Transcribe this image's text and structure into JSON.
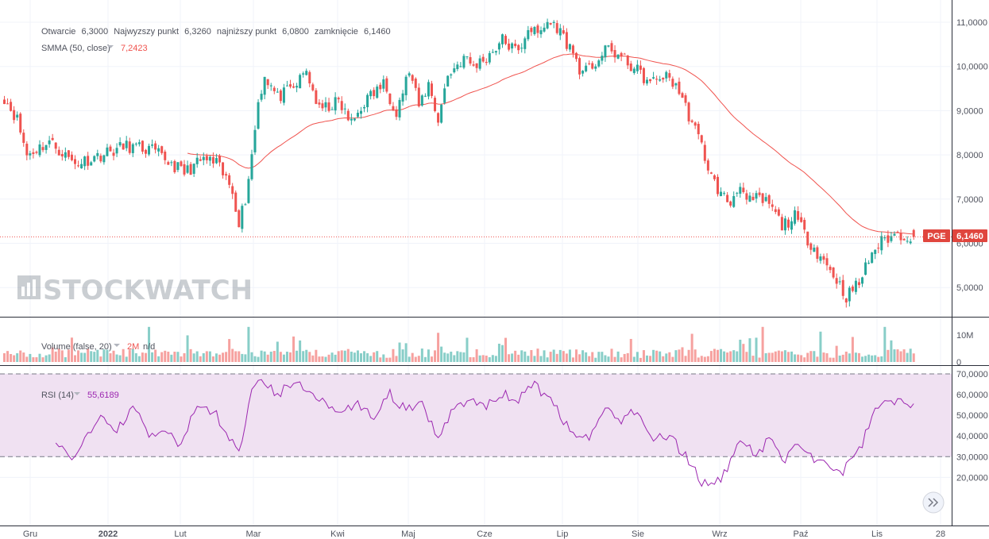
{
  "ticker": "PGE",
  "last_price": "6,1460",
  "ohlc_legend": {
    "open_label": "Otwarcie",
    "open_value": "6,3000",
    "high_label": "Najwyzszy punkt",
    "high_value": "6,3260",
    "low_label": "najniższy punkt",
    "low_value": "6,0800",
    "close_label": "zamknięcie",
    "close_value": "6,1460"
  },
  "smma_legend": {
    "label": "SMMA (50, close)",
    "value": "7,2423"
  },
  "volume_legend": {
    "label": "Volume (false, 20)",
    "value": "2M",
    "extra": "n/d"
  },
  "rsi_legend": {
    "label": "RSI (14)",
    "value": "55,6189"
  },
  "watermark": "STOCKWATCH",
  "colors": {
    "up": "#26a69a",
    "down": "#ef5350",
    "smma": "#f0534e",
    "rsi": "#9c27b0",
    "rsi_band": "#f0e1f2",
    "price_label_bg": "#e0463e"
  },
  "chart_data": [
    {
      "type": "candlestick",
      "title": "PGE",
      "x_tick_labels": [
        "Gru",
        "2022",
        "Lut",
        "Mar",
        "Kwi",
        "Maj",
        "Cze",
        "Lip",
        "Sie",
        "Wrz",
        "Paź",
        "Lis",
        "28"
      ],
      "y_tick_labels": [
        "11,0000",
        "10,0000",
        "9,0000",
        "8,0000",
        "7,0000",
        "6,0000",
        "5,0000"
      ],
      "ylim": [
        4.3,
        11.4
      ],
      "grid": true,
      "waypoints": [
        [
          0,
          9.3
        ],
        [
          4,
          8.8
        ],
        [
          7,
          8.0
        ],
        [
          14,
          8.3
        ],
        [
          22,
          7.8
        ],
        [
          30,
          8.0
        ],
        [
          38,
          8.2
        ],
        [
          46,
          8.1
        ],
        [
          56,
          7.6
        ],
        [
          62,
          7.9
        ],
        [
          66,
          7.8
        ],
        [
          71,
          7.2
        ],
        [
          73,
          6.5
        ],
        [
          75,
          7.0
        ],
        [
          77,
          8.0
        ],
        [
          79,
          9.2
        ],
        [
          81,
          9.8
        ],
        [
          85,
          9.3
        ],
        [
          90,
          9.5
        ],
        [
          94,
          9.9
        ],
        [
          98,
          9.0
        ],
        [
          104,
          9.2
        ],
        [
          108,
          8.7
        ],
        [
          112,
          9.2
        ],
        [
          118,
          9.6
        ],
        [
          122,
          9.0
        ],
        [
          126,
          9.9
        ],
        [
          129,
          9.1
        ],
        [
          132,
          9.6
        ],
        [
          135,
          8.8
        ],
        [
          138,
          9.8
        ],
        [
          143,
          10.2
        ],
        [
          146,
          10.0
        ],
        [
          150,
          10.2
        ],
        [
          155,
          10.6
        ],
        [
          160,
          10.3
        ],
        [
          163,
          10.9
        ],
        [
          166,
          10.7
        ],
        [
          169,
          11.0
        ],
        [
          172,
          10.9
        ],
        [
          177,
          10.3
        ],
        [
          180,
          9.8
        ],
        [
          184,
          10.1
        ],
        [
          188,
          10.4
        ],
        [
          192,
          10.2
        ],
        [
          197,
          9.9
        ],
        [
          201,
          9.6
        ],
        [
          205,
          9.8
        ],
        [
          209,
          9.6
        ],
        [
          213,
          8.9
        ],
        [
          217,
          8.2
        ],
        [
          220,
          7.5
        ],
        [
          223,
          7.1
        ],
        [
          226,
          6.9
        ],
        [
          229,
          7.4
        ],
        [
          231,
          6.9
        ],
        [
          234,
          7.0
        ],
        [
          238,
          6.9
        ],
        [
          242,
          6.4
        ],
        [
          246,
          6.6
        ],
        [
          250,
          6.1
        ],
        [
          254,
          5.7
        ],
        [
          258,
          5.3
        ],
        [
          262,
          4.8
        ],
        [
          266,
          5.1
        ],
        [
          270,
          5.8
        ],
        [
          274,
          6.1
        ],
        [
          278,
          6.2
        ],
        [
          283,
          6.146
        ]
      ],
      "volume_ylim": [
        0,
        16
      ],
      "volume_tick_labels": [
        "10M",
        "0"
      ],
      "rsi_ylim": [
        13,
        72
      ],
      "rsi_tick_labels": [
        "70,0000",
        "60,0000",
        "50,0000",
        "40,0000",
        "30,0000",
        "20,0000"
      ],
      "rsi_levels": [
        70,
        30
      ],
      "rsi_waypoints": [
        [
          16,
          37
        ],
        [
          19,
          33
        ],
        [
          21,
          30
        ],
        [
          25,
          38
        ],
        [
          30,
          48
        ],
        [
          35,
          43
        ],
        [
          40,
          54
        ],
        [
          45,
          40
        ],
        [
          50,
          42
        ],
        [
          55,
          36
        ],
        [
          60,
          55
        ],
        [
          66,
          50
        ],
        [
          73,
          31
        ],
        [
          77,
          65
        ],
        [
          80,
          68
        ],
        [
          85,
          60
        ],
        [
          90,
          66
        ],
        [
          96,
          62
        ],
        [
          100,
          55
        ],
        [
          106,
          52
        ],
        [
          110,
          56
        ],
        [
          115,
          48
        ],
        [
          120,
          60
        ],
        [
          125,
          52
        ],
        [
          130,
          55
        ],
        [
          135,
          38
        ],
        [
          140,
          55
        ],
        [
          146,
          58
        ],
        [
          150,
          54
        ],
        [
          155,
          60
        ],
        [
          160,
          58
        ],
        [
          165,
          64
        ],
        [
          170,
          58
        ],
        [
          177,
          40
        ],
        [
          182,
          38
        ],
        [
          187,
          53
        ],
        [
          192,
          48
        ],
        [
          197,
          53
        ],
        [
          202,
          38
        ],
        [
          207,
          40
        ],
        [
          212,
          30
        ],
        [
          217,
          18
        ],
        [
          221,
          16
        ],
        [
          225,
          23
        ],
        [
          229,
          40
        ],
        [
          234,
          31
        ],
        [
          238,
          38
        ],
        [
          243,
          29
        ],
        [
          247,
          35
        ],
        [
          251,
          30
        ],
        [
          256,
          27
        ],
        [
          260,
          21
        ],
        [
          264,
          30
        ],
        [
          267,
          36
        ],
        [
          271,
          54
        ],
        [
          274,
          58
        ],
        [
          278,
          57
        ],
        [
          283,
          55.6
        ]
      ]
    }
  ]
}
